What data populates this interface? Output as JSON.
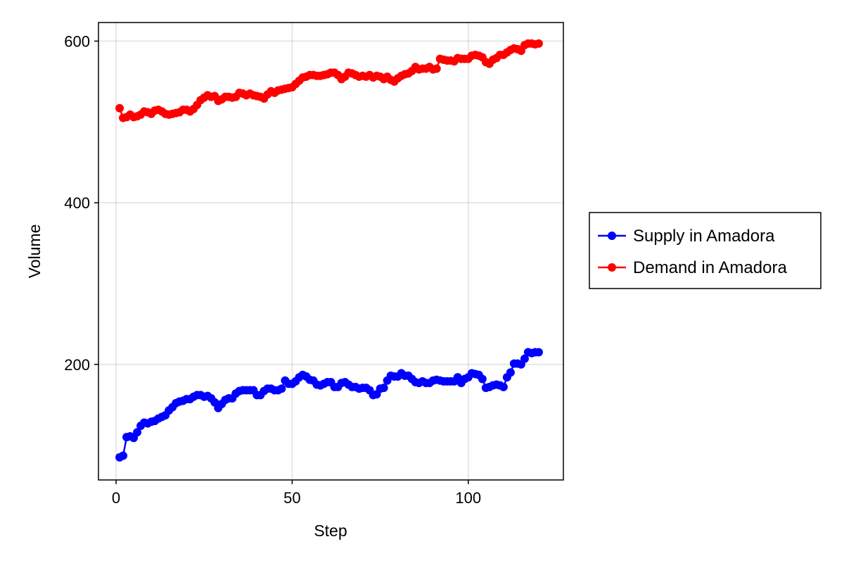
{
  "chart_data": {
    "type": "scatter",
    "xlabel": "Step",
    "ylabel": "Volume",
    "xlim": [
      -5,
      127
    ],
    "ylim": [
      57,
      623
    ],
    "xticks": [
      0,
      50,
      100
    ],
    "yticks": [
      200,
      400,
      600
    ],
    "grid": true,
    "legend_position": "right",
    "series": [
      {
        "name": "Supply in Amadora",
        "color": "#0000ff",
        "x": [
          1,
          2,
          3,
          4,
          5,
          6,
          7,
          8,
          9,
          10,
          11,
          12,
          13,
          14,
          15,
          16,
          17,
          18,
          19,
          20,
          21,
          22,
          23,
          24,
          25,
          26,
          27,
          28,
          29,
          30,
          31,
          32,
          33,
          34,
          35,
          36,
          37,
          38,
          39,
          40,
          41,
          42,
          43,
          44,
          45,
          46,
          47,
          48,
          49,
          50,
          51,
          52,
          53,
          54,
          55,
          56,
          57,
          58,
          59,
          60,
          61,
          62,
          63,
          64,
          65,
          66,
          67,
          68,
          69,
          70,
          71,
          72,
          73,
          74,
          75,
          76,
          77,
          78,
          79,
          80,
          81,
          82,
          83,
          84,
          85,
          86,
          87,
          88,
          89,
          90,
          91,
          92,
          93,
          94,
          95,
          96,
          97,
          98,
          99,
          100,
          101,
          102,
          103,
          104,
          105,
          106,
          107,
          108,
          109,
          110,
          111,
          112,
          113,
          114,
          115,
          116,
          117,
          118,
          119,
          120
        ],
        "values": [
          85,
          87,
          110,
          111,
          109,
          116,
          124,
          128,
          127,
          129,
          130,
          133,
          135,
          137,
          143,
          147,
          152,
          154,
          155,
          157,
          157,
          160,
          162,
          162,
          160,
          161,
          158,
          153,
          146,
          151,
          156,
          158,
          158,
          164,
          167,
          168,
          168,
          168,
          168,
          162,
          162,
          167,
          170,
          170,
          168,
          168,
          170,
          180,
          176,
          176,
          179,
          184,
          187,
          185,
          181,
          180,
          175,
          174,
          176,
          178,
          178,
          172,
          172,
          177,
          178,
          175,
          172,
          172,
          170,
          171,
          171,
          168,
          162,
          163,
          170,
          171,
          180,
          186,
          185,
          185,
          189,
          186,
          186,
          182,
          178,
          177,
          179,
          177,
          177,
          180,
          181,
          180,
          179,
          179,
          179,
          179,
          184,
          177,
          182,
          184,
          189,
          188,
          187,
          182,
          171,
          172,
          174,
          175,
          174,
          172,
          184,
          190,
          201,
          201,
          200,
          207,
          215,
          214,
          215,
          215
        ]
      },
      {
        "name": "Demand in Amadora",
        "color": "#ff0000",
        "x": [
          1,
          2,
          3,
          4,
          5,
          6,
          7,
          8,
          9,
          10,
          11,
          12,
          13,
          14,
          15,
          16,
          17,
          18,
          19,
          20,
          21,
          22,
          23,
          24,
          25,
          26,
          27,
          28,
          29,
          30,
          31,
          32,
          33,
          34,
          35,
          36,
          37,
          38,
          39,
          40,
          41,
          42,
          43,
          44,
          45,
          46,
          47,
          48,
          49,
          50,
          51,
          52,
          53,
          54,
          55,
          56,
          57,
          58,
          59,
          60,
          61,
          62,
          63,
          64,
          65,
          66,
          67,
          68,
          69,
          70,
          71,
          72,
          73,
          74,
          75,
          76,
          77,
          78,
          79,
          80,
          81,
          82,
          83,
          84,
          85,
          86,
          87,
          88,
          89,
          90,
          91,
          92,
          93,
          94,
          95,
          96,
          97,
          98,
          99,
          100,
          101,
          102,
          103,
          104,
          105,
          106,
          107,
          108,
          109,
          110,
          111,
          112,
          113,
          114,
          115,
          116,
          117,
          118,
          119,
          120
        ],
        "values": [
          517,
          505,
          506,
          509,
          506,
          507,
          509,
          513,
          512,
          510,
          514,
          515,
          513,
          510,
          509,
          510,
          511,
          512,
          515,
          515,
          513,
          516,
          521,
          527,
          530,
          533,
          531,
          532,
          526,
          528,
          531,
          531,
          530,
          531,
          536,
          535,
          533,
          535,
          533,
          532,
          531,
          529,
          534,
          538,
          536,
          539,
          540,
          541,
          542,
          543,
          547,
          551,
          555,
          556,
          558,
          558,
          557,
          557,
          558,
          559,
          561,
          561,
          558,
          553,
          556,
          561,
          560,
          558,
          556,
          557,
          556,
          558,
          555,
          557,
          556,
          553,
          556,
          552,
          550,
          554,
          557,
          559,
          560,
          563,
          568,
          565,
          566,
          566,
          568,
          565,
          566,
          578,
          577,
          576,
          576,
          575,
          579,
          578,
          578,
          578,
          582,
          583,
          582,
          580,
          574,
          572,
          577,
          579,
          583,
          583,
          586,
          589,
          591,
          590,
          588,
          595,
          597,
          597,
          596,
          597
        ]
      }
    ]
  }
}
